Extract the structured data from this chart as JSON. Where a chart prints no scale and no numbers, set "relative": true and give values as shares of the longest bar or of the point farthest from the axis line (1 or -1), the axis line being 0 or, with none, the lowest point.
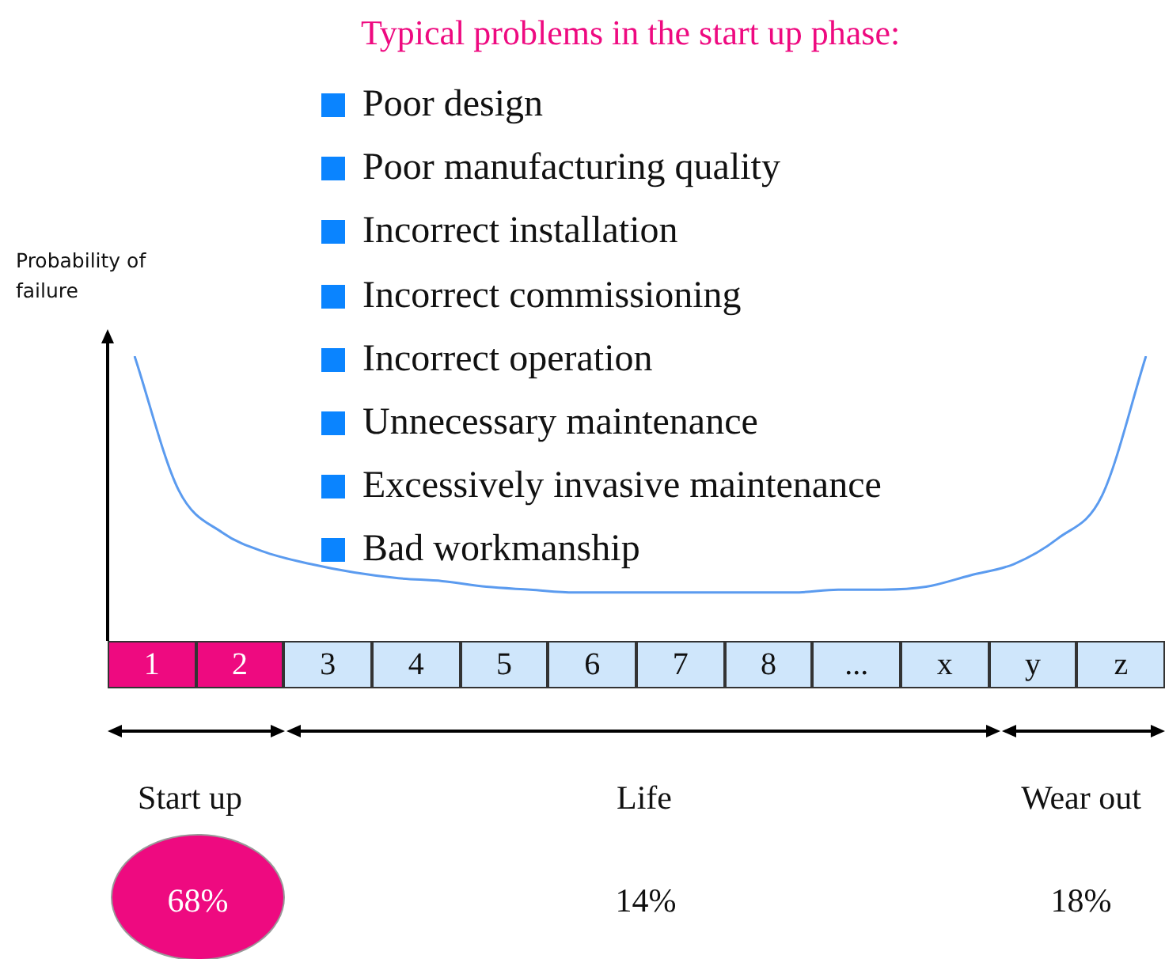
{
  "chart_data": {
    "type": "line",
    "title": "Typical problems in the start up phase:",
    "ylabel": "Probability of failure",
    "relative": true,
    "marker": "none",
    "categories": [
      null,
      null,
      null,
      null,
      null,
      null,
      null,
      null,
      null,
      null,
      null,
      null,
      null,
      null,
      null,
      null,
      null,
      null,
      null,
      null,
      null,
      null,
      null,
      null
    ],
    "series": [
      {
        "color": "#5b9bef",
        "values": [
          1,
          0.53,
          0.38,
          0.31,
          0.27,
          0.24,
          0.22,
          0.21,
          0.19,
          0.18,
          0.17,
          0.17,
          0.17,
          0.17,
          0.17,
          0.17,
          0.18,
          0.18,
          0.19,
          0.23,
          0.27,
          0.36,
          0.51,
          1
        ]
      }
    ],
    "annotations": [
      "Poor design",
      "Poor manufacturing quality",
      "Incorrect installation",
      "Incorrect commissioning",
      "Incorrect operation",
      "Unnecessary maintenance",
      "Excessively invasive maintenance",
      "Bad workmanship",
      "1",
      "2",
      "3",
      "4",
      "5",
      "6",
      "7",
      "8",
      "...",
      "x",
      "y",
      "z",
      "Start up",
      "Life",
      "Wear out",
      "68%",
      "14%",
      "18%"
    ]
  }
}
